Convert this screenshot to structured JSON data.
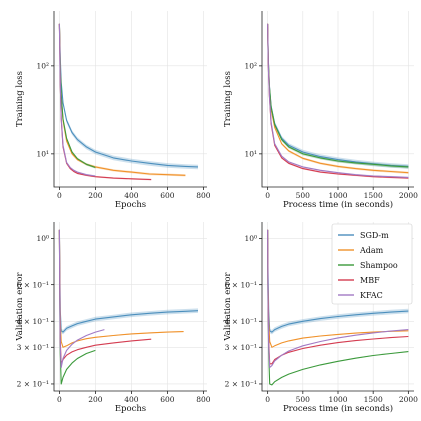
{
  "chart_data": [
    {
      "type": "line",
      "panel": "top-left",
      "xlabel": "Epochs",
      "ylabel": "Training loss",
      "xscale": "linear",
      "yscale": "log",
      "xlim": [
        -30,
        820
      ],
      "ylim": [
        4.2,
        420
      ],
      "xticks": [
        {
          "v": 0,
          "label": "0"
        },
        {
          "v": 200,
          "label": "200"
        },
        {
          "v": 400,
          "label": "400"
        },
        {
          "v": 600,
          "label": "600"
        },
        {
          "v": 800,
          "label": "800"
        }
      ],
      "yticks": [
        {
          "v": 10,
          "label": "10¹"
        },
        {
          "v": 100,
          "label": "10²"
        }
      ],
      "grid": true,
      "series": [
        {
          "name": "SGD-m",
          "color": "#4c8fbd",
          "band": 0.06,
          "x": [
            0,
            5,
            10,
            20,
            40,
            70,
            100,
            150,
            200,
            300,
            400,
            500,
            600,
            700,
            770
          ],
          "y": [
            300,
            120,
            65,
            38,
            24,
            17.5,
            14.5,
            12,
            10.5,
            9,
            8.3,
            7.8,
            7.4,
            7.2,
            7.1
          ]
        },
        {
          "name": "Adam",
          "color": "#f0922b",
          "band": 0.03,
          "x": [
            0,
            5,
            10,
            20,
            40,
            70,
            100,
            150,
            200,
            300,
            400,
            500,
            600,
            700
          ],
          "y": [
            300,
            90,
            45,
            24,
            14,
            10,
            8.6,
            7.6,
            7.1,
            6.5,
            6.2,
            5.9,
            5.8,
            5.7
          ]
        },
        {
          "name": "Shampoo",
          "color": "#3c9a3c",
          "band": 0.03,
          "x": [
            0,
            5,
            10,
            20,
            40,
            70,
            100,
            150,
            200
          ],
          "y": [
            300,
            95,
            48,
            25,
            15,
            10.5,
            8.8,
            7.6,
            7.0
          ]
        },
        {
          "name": "MBF",
          "color": "#d43d51",
          "band": 0.02,
          "x": [
            0,
            5,
            10,
            20,
            40,
            60,
            80,
            100,
            150,
            200,
            300,
            400,
            510
          ],
          "y": [
            300,
            60,
            25,
            12,
            7.8,
            6.8,
            6.3,
            6.0,
            5.7,
            5.5,
            5.3,
            5.2,
            5.1
          ]
        },
        {
          "name": "KFAC",
          "color": "#a27ac4",
          "band": 0.02,
          "x": [
            0,
            5,
            10,
            20,
            40,
            60,
            80,
            100,
            150,
            200
          ],
          "y": [
            300,
            60,
            26,
            12.5,
            8,
            7,
            6.5,
            6.2,
            5.8,
            5.6
          ]
        }
      ]
    },
    {
      "type": "line",
      "panel": "top-right",
      "xlabel": "Process time (in seconds)",
      "ylabel": "Training loss",
      "xscale": "linear",
      "yscale": "log",
      "xlim": [
        -80,
        2080
      ],
      "ylim": [
        4.2,
        420
      ],
      "xticks": [
        {
          "v": 0,
          "label": "0"
        },
        {
          "v": 500,
          "label": "500"
        },
        {
          "v": 1000,
          "label": "1000"
        },
        {
          "v": 1500,
          "label": "1500"
        },
        {
          "v": 2000,
          "label": "2000"
        }
      ],
      "yticks": [
        {
          "v": 10,
          "label": "10¹"
        },
        {
          "v": 100,
          "label": "10²"
        }
      ],
      "grid": true,
      "series": [
        {
          "name": "SGD-m",
          "color": "#4c8fbd",
          "band": 0.06,
          "x": [
            0,
            10,
            25,
            50,
            100,
            200,
            300,
            500,
            750,
            1000,
            1250,
            1500,
            1750,
            2000
          ],
          "y": [
            300,
            120,
            60,
            35,
            22,
            15,
            12.5,
            10.5,
            9.3,
            8.6,
            8.1,
            7.7,
            7.4,
            7.2
          ]
        },
        {
          "name": "Adam",
          "color": "#f0922b",
          "band": 0.03,
          "x": [
            0,
            10,
            25,
            50,
            100,
            200,
            300,
            500,
            750,
            1000,
            1250,
            1500,
            1750,
            2000
          ],
          "y": [
            300,
            110,
            55,
            32,
            20,
            13,
            10.8,
            8.9,
            7.8,
            7.2,
            6.8,
            6.5,
            6.3,
            6.1
          ]
        },
        {
          "name": "Shampoo",
          "color": "#3c9a3c",
          "band": 0.04,
          "x": [
            0,
            10,
            25,
            50,
            100,
            200,
            300,
            500,
            750,
            1000,
            1250,
            1500,
            1750,
            2000
          ],
          "y": [
            300,
            115,
            58,
            34,
            21.5,
            14.5,
            12,
            10,
            9,
            8.3,
            7.9,
            7.6,
            7.3,
            7.1
          ]
        },
        {
          "name": "MBF",
          "color": "#d43d51",
          "band": 0.02,
          "x": [
            0,
            10,
            25,
            50,
            100,
            200,
            300,
            500,
            750,
            1000,
            1250,
            1500,
            1750,
            2000
          ],
          "y": [
            300,
            100,
            45,
            22,
            12.5,
            9,
            7.8,
            6.8,
            6.2,
            5.9,
            5.7,
            5.5,
            5.4,
            5.3
          ]
        },
        {
          "name": "KFAC",
          "color": "#a27ac4",
          "band": 0.02,
          "x": [
            0,
            10,
            25,
            50,
            100,
            200,
            300,
            500,
            750,
            1000,
            1250,
            1500,
            1750,
            2000
          ],
          "y": [
            300,
            100,
            46,
            23,
            13,
            9.4,
            8.1,
            7.1,
            6.5,
            6.1,
            5.8,
            5.6,
            5.5,
            5.4
          ]
        }
      ]
    },
    {
      "type": "line",
      "panel": "bottom-left",
      "xlabel": "Epochs",
      "ylabel": "Validation error",
      "xscale": "linear",
      "yscale": "log",
      "xlim": [
        -30,
        820
      ],
      "ylim": [
        0.185,
        1.2
      ],
      "xticks": [
        {
          "v": 0,
          "label": "0"
        },
        {
          "v": 200,
          "label": "200"
        },
        {
          "v": 400,
          "label": "400"
        },
        {
          "v": 600,
          "label": "600"
        },
        {
          "v": 800,
          "label": "800"
        }
      ],
      "yticks": [
        {
          "v": 1.0,
          "label": "10⁰"
        },
        {
          "v": 0.6,
          "label": "6 × 10⁻¹"
        },
        {
          "v": 0.4,
          "label": "4 × 10⁻¹"
        },
        {
          "v": 0.3,
          "label": "3 × 10⁻¹"
        },
        {
          "v": 0.2,
          "label": "2 × 10⁻¹"
        }
      ],
      "grid": true,
      "series": [
        {
          "name": "SGD-m",
          "color": "#4c8fbd",
          "band": 0.025,
          "x": [
            0,
            2,
            5,
            10,
            20,
            40,
            70,
            100,
            150,
            200,
            300,
            400,
            500,
            600,
            700,
            770
          ],
          "y": [
            1.1,
            0.7,
            0.45,
            0.36,
            0.355,
            0.37,
            0.38,
            0.39,
            0.4,
            0.41,
            0.42,
            0.43,
            0.437,
            0.443,
            0.447,
            0.45
          ]
        },
        {
          "name": "Adam",
          "color": "#f0922b",
          "band": 0.005,
          "x": [
            0,
            2,
            5,
            10,
            20,
            40,
            70,
            100,
            150,
            200,
            300,
            400,
            500,
            600,
            690
          ],
          "y": [
            1.1,
            0.6,
            0.4,
            0.32,
            0.3,
            0.305,
            0.315,
            0.322,
            0.33,
            0.335,
            0.342,
            0.348,
            0.352,
            0.355,
            0.357
          ]
        },
        {
          "name": "Shampoo",
          "color": "#3c9a3c",
          "band": 0.004,
          "x": [
            0,
            2,
            5,
            10,
            20,
            40,
            70,
            100,
            150,
            200
          ],
          "y": [
            1.1,
            0.5,
            0.28,
            0.2,
            0.215,
            0.235,
            0.252,
            0.265,
            0.28,
            0.29
          ]
        },
        {
          "name": "MBF",
          "color": "#d43d51",
          "band": 0.004,
          "x": [
            0,
            2,
            5,
            10,
            20,
            40,
            70,
            100,
            150,
            200,
            300,
            400,
            510
          ],
          "y": [
            1.1,
            0.55,
            0.32,
            0.25,
            0.262,
            0.275,
            0.285,
            0.292,
            0.3,
            0.307,
            0.315,
            0.322,
            0.328
          ]
        },
        {
          "name": "KFAC",
          "color": "#a27ac4",
          "band": 0.004,
          "x": [
            0,
            2,
            5,
            10,
            20,
            40,
            70,
            100,
            150,
            200,
            250
          ],
          "y": [
            1.1,
            0.52,
            0.3,
            0.24,
            0.265,
            0.29,
            0.31,
            0.325,
            0.342,
            0.355,
            0.365
          ]
        }
      ]
    },
    {
      "type": "line",
      "panel": "bottom-right",
      "xlabel": "Process time (in seconds)",
      "ylabel": "Validation error",
      "xscale": "linear",
      "yscale": "log",
      "xlim": [
        -80,
        2080
      ],
      "ylim": [
        0.185,
        1.2
      ],
      "xticks": [
        {
          "v": 0,
          "label": "0"
        },
        {
          "v": 500,
          "label": "500"
        },
        {
          "v": 1000,
          "label": "1000"
        },
        {
          "v": 1500,
          "label": "1500"
        },
        {
          "v": 2000,
          "label": "2000"
        }
      ],
      "yticks": [
        {
          "v": 1.0,
          "label": "10⁰"
        },
        {
          "v": 0.6,
          "label": "6 × 10⁻¹"
        },
        {
          "v": 0.4,
          "label": "4 × 10⁻¹"
        },
        {
          "v": 0.3,
          "label": "3 × 10⁻¹"
        },
        {
          "v": 0.2,
          "label": "2 × 10⁻¹"
        }
      ],
      "grid": true,
      "legend": "top-right",
      "series": [
        {
          "name": "SGD-m",
          "color": "#4c8fbd",
          "band": 0.025,
          "x": [
            0,
            5,
            15,
            30,
            60,
            100,
            200,
            300,
            500,
            750,
            1000,
            1250,
            1500,
            1750,
            2000
          ],
          "y": [
            1.1,
            0.7,
            0.45,
            0.36,
            0.355,
            0.365,
            0.378,
            0.388,
            0.4,
            0.412,
            0.422,
            0.43,
            0.437,
            0.443,
            0.448
          ]
        },
        {
          "name": "Adam",
          "color": "#f0922b",
          "band": 0.005,
          "x": [
            0,
            5,
            15,
            30,
            60,
            100,
            200,
            300,
            500,
            750,
            1000,
            1250,
            1500,
            1750,
            2000
          ],
          "y": [
            1.1,
            0.6,
            0.4,
            0.32,
            0.3,
            0.305,
            0.315,
            0.322,
            0.332,
            0.34,
            0.346,
            0.351,
            0.355,
            0.358,
            0.36
          ]
        },
        {
          "name": "Shampoo",
          "color": "#3c9a3c",
          "band": 0.004,
          "x": [
            0,
            5,
            15,
            30,
            60,
            100,
            200,
            300,
            500,
            750,
            1000,
            1250,
            1500,
            1750,
            2000
          ],
          "y": [
            1.1,
            0.5,
            0.28,
            0.2,
            0.198,
            0.205,
            0.215,
            0.223,
            0.235,
            0.247,
            0.257,
            0.266,
            0.274,
            0.28,
            0.286
          ]
        },
        {
          "name": "MBF",
          "color": "#d43d51",
          "band": 0.004,
          "x": [
            0,
            5,
            15,
            30,
            60,
            100,
            200,
            300,
            500,
            750,
            1000,
            1250,
            1500,
            1750,
            2000
          ],
          "y": [
            1.1,
            0.55,
            0.32,
            0.25,
            0.25,
            0.262,
            0.275,
            0.284,
            0.296,
            0.307,
            0.316,
            0.323,
            0.329,
            0.334,
            0.338
          ]
        },
        {
          "name": "KFAC",
          "color": "#a27ac4",
          "band": 0.004,
          "x": [
            0,
            5,
            15,
            30,
            60,
            100,
            200,
            300,
            500,
            750,
            1000,
            1250,
            1500,
            1750,
            2000
          ],
          "y": [
            1.1,
            0.52,
            0.3,
            0.24,
            0.245,
            0.258,
            0.275,
            0.288,
            0.305,
            0.32,
            0.333,
            0.343,
            0.352,
            0.359,
            0.365
          ]
        }
      ]
    }
  ]
}
